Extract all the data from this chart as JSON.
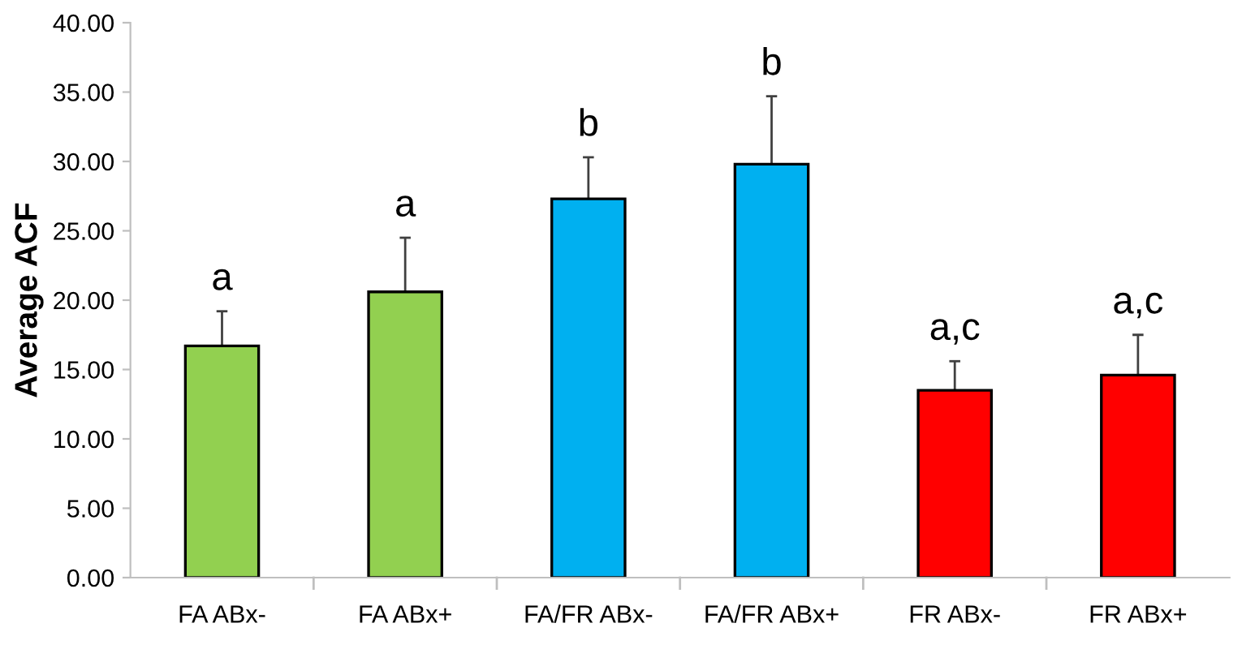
{
  "chart_data": {
    "type": "bar",
    "ylabel": "Average ACF",
    "categories": [
      "FA ABx-",
      "FA ABx+",
      "FA/FR ABx-",
      "FA/FR ABx+",
      "FR ABx-",
      "FR ABx+"
    ],
    "values": [
      16.7,
      20.6,
      27.3,
      29.8,
      13.5,
      14.6
    ],
    "colors": [
      "#92d050",
      "#92d050",
      "#00b0f0",
      "#00b0f0",
      "#ff0000",
      "#ff0000"
    ],
    "errors": [
      [
        16.7,
        19.2
      ],
      [
        20.6,
        24.5
      ],
      [
        27.3,
        30.3
      ],
      [
        29.8,
        34.7
      ],
      [
        13.5,
        15.6
      ],
      [
        14.6,
        17.5
      ]
    ],
    "ylim": [
      0,
      40
    ],
    "yticks": [
      {
        "value": 0,
        "label": "0.00"
      },
      {
        "value": 5,
        "label": "5.00"
      },
      {
        "value": 10,
        "label": "10.00"
      },
      {
        "value": 15,
        "label": "15.00"
      },
      {
        "value": 20,
        "label": "20.00"
      },
      {
        "value": 25,
        "label": "25.00"
      },
      {
        "value": 30,
        "label": "30.00"
      },
      {
        "value": 35,
        "label": "35.00"
      },
      {
        "value": 40,
        "label": "40.00"
      }
    ],
    "grid": false,
    "legend": false,
    "annotations": [
      {
        "text": "a",
        "x": "FA ABx-",
        "y": 19.2
      },
      {
        "text": "a",
        "x": "FA ABx+",
        "y": 24.5
      },
      {
        "text": "b",
        "x": "FA/FR ABx-",
        "y": 30.3
      },
      {
        "text": "b",
        "x": "FA/FR ABx+",
        "y": 34.7
      },
      {
        "text": "a,c",
        "x": "FR ABx-",
        "y": 15.6
      },
      {
        "text": "a,c",
        "x": "FR ABx+",
        "y": 17.5
      }
    ]
  }
}
